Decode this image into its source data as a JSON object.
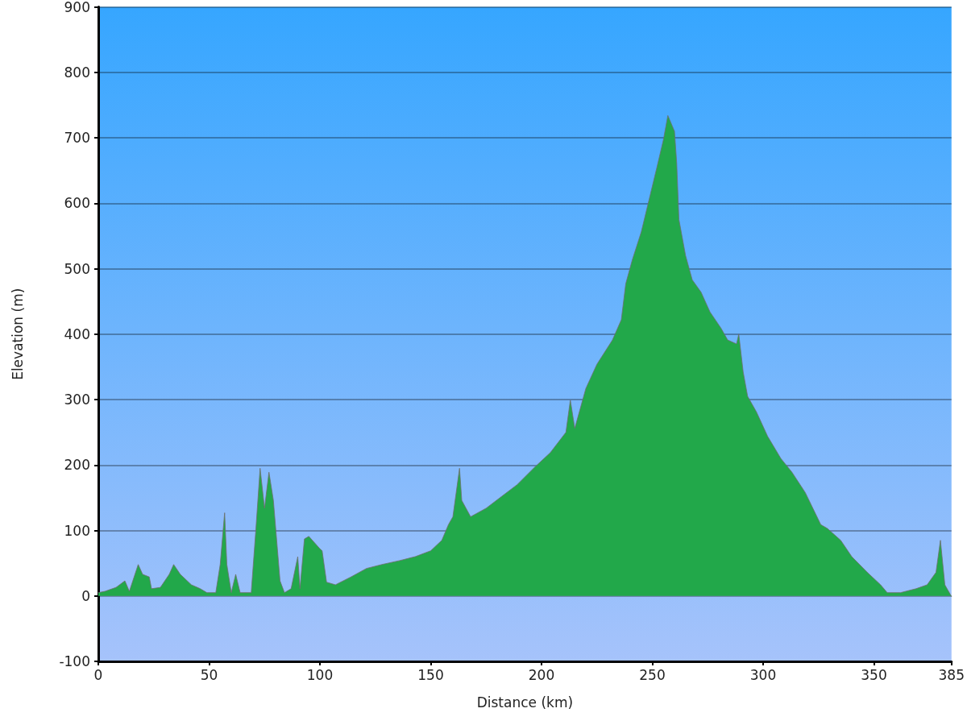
{
  "chart_data": {
    "type": "area",
    "xlabel": "Distance (km)",
    "ylabel": "Elevation (m)",
    "x": [
      0,
      3,
      8,
      12,
      14,
      18,
      20,
      23,
      24,
      28,
      32,
      34,
      37,
      42,
      46,
      49,
      53,
      55,
      57,
      58,
      60,
      62,
      64,
      69,
      71,
      73,
      75,
      77,
      79,
      82,
      84,
      87,
      90,
      91,
      93,
      95,
      100,
      101,
      103,
      107,
      114,
      121,
      128,
      136,
      143,
      150,
      155,
      158,
      160,
      163,
      164,
      168,
      175,
      182,
      189,
      197,
      204,
      211,
      213,
      215,
      220,
      225,
      232,
      236,
      238,
      241,
      245,
      249,
      252,
      255,
      257,
      260,
      261,
      262,
      265,
      268,
      272,
      276,
      281,
      284,
      288,
      289,
      291,
      293,
      297,
      302,
      308,
      313,
      319,
      326,
      329,
      335,
      340,
      347,
      353,
      356,
      362,
      369,
      374,
      378,
      380,
      382,
      385
    ],
    "values": [
      5,
      7,
      13,
      23,
      7,
      48,
      33,
      29,
      11,
      13,
      33,
      48,
      33,
      17,
      11,
      5,
      5,
      48,
      127,
      48,
      5,
      33,
      5,
      5,
      97,
      195,
      134,
      189,
      146,
      23,
      5,
      11,
      60,
      11,
      87,
      91,
      72,
      69,
      21,
      17,
      29,
      42,
      48,
      54,
      60,
      69,
      85,
      109,
      121,
      195,
      146,
      121,
      134,
      152,
      170,
      197,
      219,
      250,
      299,
      256,
      317,
      354,
      391,
      422,
      477,
      514,
      556,
      612,
      654,
      697,
      734,
      710,
      661,
      575,
      520,
      483,
      464,
      434,
      409,
      391,
      385,
      400,
      342,
      305,
      281,
      244,
      210,
      189,
      158,
      109,
      103,
      85,
      60,
      36,
      17,
      5,
      5,
      11,
      17,
      36,
      85,
      17,
      -1
    ],
    "color": "#22a84a",
    "xlim": [
      0,
      385
    ],
    "xticks": [
      0,
      50,
      100,
      150,
      200,
      250,
      300,
      350,
      385
    ],
    "ylim": [
      -100,
      900
    ],
    "yticks": [
      -100,
      0,
      100,
      200,
      300,
      400,
      500,
      600,
      700,
      800,
      900
    ],
    "grid": "y"
  }
}
